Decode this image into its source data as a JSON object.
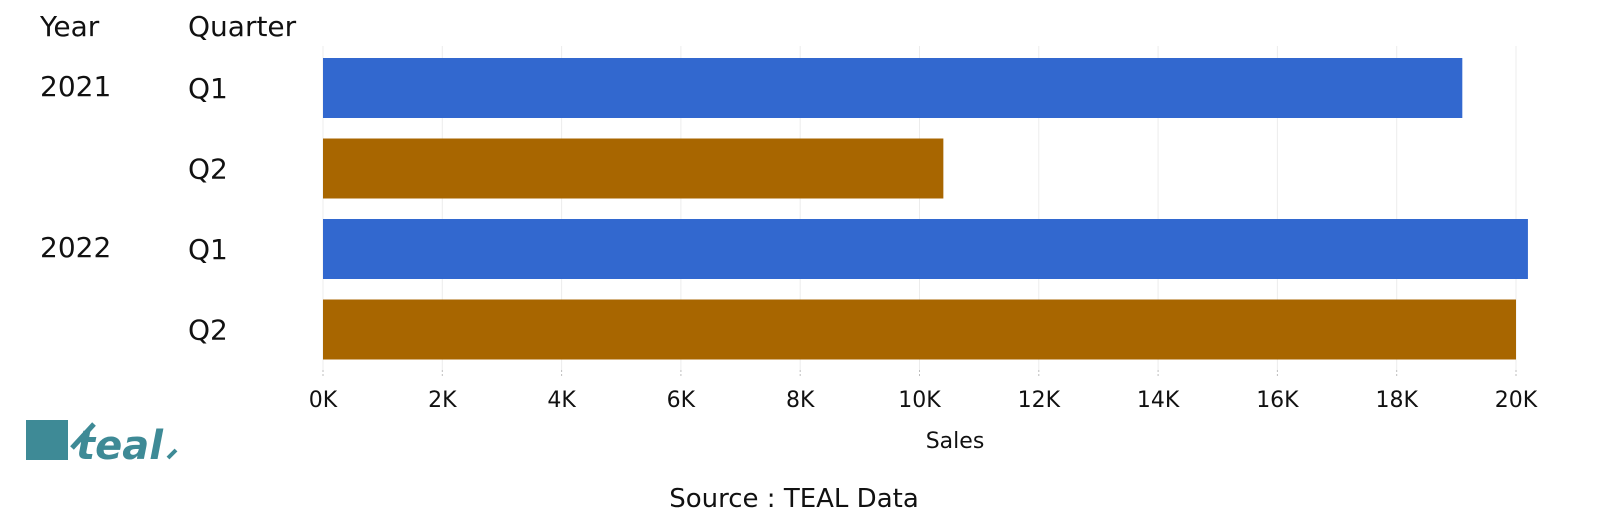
{
  "headers": {
    "year": "Year",
    "quarter": "Quarter"
  },
  "source": "Source : TEAL Data",
  "logo": {
    "text": "teal",
    "color": "#3e8a96"
  },
  "colors": {
    "Q1": "#3268cf",
    "Q2": "#a86600"
  },
  "chart_data": {
    "type": "bar",
    "orientation": "horizontal",
    "xlabel": "Sales",
    "xlim": [
      0,
      20000
    ],
    "x_ticks": [
      "0K",
      "2K",
      "4K",
      "6K",
      "8K",
      "10K",
      "12K",
      "14K",
      "16K",
      "18K",
      "20K"
    ],
    "grid": true,
    "rows": [
      {
        "year": "2021",
        "quarter": "Q1",
        "value": 19100
      },
      {
        "year": "2021",
        "quarter": "Q2",
        "value": 10400
      },
      {
        "year": "2022",
        "quarter": "Q1",
        "value": 20200
      },
      {
        "year": "2022",
        "quarter": "Q2",
        "value": 20000
      }
    ]
  }
}
